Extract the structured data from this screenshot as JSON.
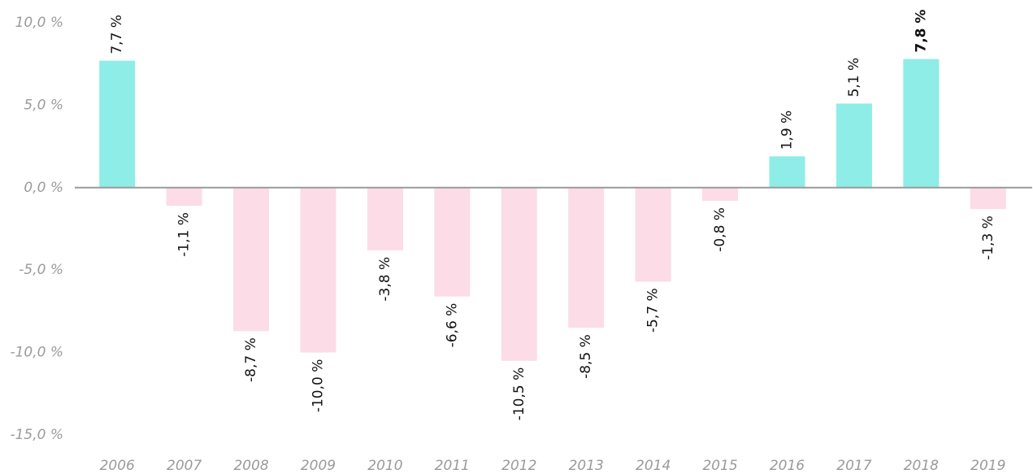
{
  "chart_data": {
    "type": "bar",
    "categories": [
      "2006",
      "2007",
      "2008",
      "2009",
      "2010",
      "2011",
      "2012",
      "2013",
      "2014",
      "2015",
      "2016",
      "2017",
      "2018",
      "2019"
    ],
    "values": [
      7.7,
      -1.1,
      -8.7,
      -10.0,
      -3.8,
      -6.6,
      -10.5,
      -8.5,
      -5.7,
      -0.8,
      1.9,
      5.1,
      7.8,
      -1.3
    ],
    "value_labels": [
      "7,7 %",
      "-1,1 %",
      "-8,7 %",
      "-10,0 %",
      "-3,8 %",
      "-6,6 %",
      "-10,5 %",
      "-8,5 %",
      "-5,7 %",
      "-0,8 %",
      "1,9 %",
      "5,1 %",
      "7,8 %",
      "-1,3 %"
    ],
    "color_positive": "#8eede6",
    "color_negative": "#fcdce6",
    "highlight": "2018",
    "ylim": [
      -15,
      10
    ],
    "yticks": [
      {
        "value": 10,
        "label": "10,0 %"
      },
      {
        "value": 5,
        "label": "5,0 %"
      },
      {
        "value": 0,
        "label": "0,0 %"
      },
      {
        "value": -5,
        "label": "-5,0 %"
      },
      {
        "value": -10,
        "label": "-10,0 %"
      },
      {
        "value": -15,
        "label": "-15,0 %"
      }
    ],
    "grid": false
  }
}
